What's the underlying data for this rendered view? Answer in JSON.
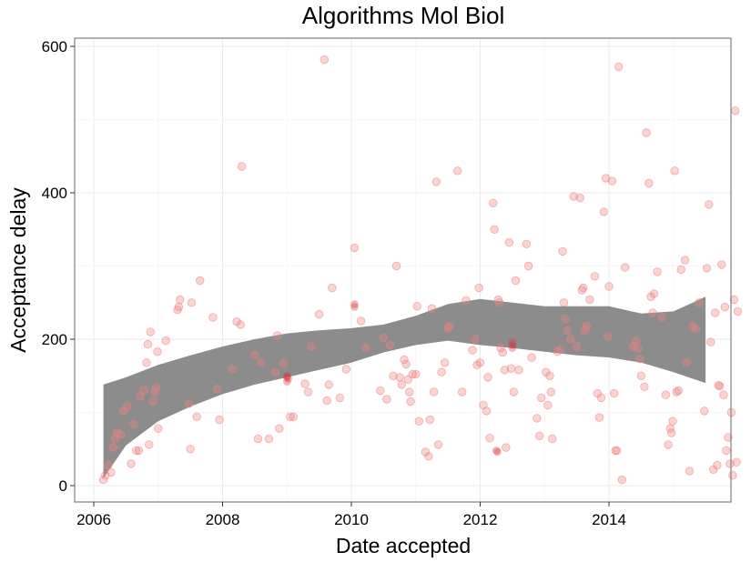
{
  "chart_data": {
    "type": "scatter",
    "title": "Algorithms Mol Biol",
    "xlabel": "Date accepted",
    "ylabel": "Acceptance delay",
    "xlim": [
      2005.7,
      2015.9
    ],
    "ylim": [
      -20,
      612
    ],
    "x_ticks": [
      2006,
      2008,
      2010,
      2012,
      2014
    ],
    "y_ticks": [
      0,
      200,
      400,
      600
    ],
    "grid": true,
    "point_color": "#f08080",
    "point_highlight_color": "#e03030",
    "band_color": "#8c8c8c",
    "points": [
      [
        2006.15,
        8
      ],
      [
        2006.18,
        14
      ],
      [
        2006.22,
        28
      ],
      [
        2006.27,
        18
      ],
      [
        2006.3,
        52
      ],
      [
        2006.33,
        64
      ],
      [
        2006.36,
        72
      ],
      [
        2006.42,
        70
      ],
      [
        2006.46,
        102
      ],
      [
        2006.52,
        108
      ],
      [
        2006.58,
        30
      ],
      [
        2006.62,
        84
      ],
      [
        2006.66,
        48
      ],
      [
        2006.7,
        48
      ],
      [
        2006.72,
        122
      ],
      [
        2006.78,
        130
      ],
      [
        2006.82,
        168
      ],
      [
        2006.84,
        193
      ],
      [
        2006.86,
        56
      ],
      [
        2006.88,
        210
      ],
      [
        2006.92,
        115
      ],
      [
        2006.95,
        128
      ],
      [
        2006.97,
        134
      ],
      [
        2006.99,
        183
      ],
      [
        2007.0,
        78
      ],
      [
        2007.12,
        198
      ],
      [
        2007.3,
        240
      ],
      [
        2007.32,
        244
      ],
      [
        2007.34,
        254
      ],
      [
        2007.48,
        112
      ],
      [
        2007.5,
        50
      ],
      [
        2007.52,
        250
      ],
      [
        2007.6,
        94
      ],
      [
        2007.65,
        280
      ],
      [
        2007.85,
        230
      ],
      [
        2007.92,
        132
      ],
      [
        2007.95,
        90
      ],
      [
        2008.15,
        159
      ],
      [
        2008.22,
        224
      ],
      [
        2008.28,
        220
      ],
      [
        2008.3,
        436
      ],
      [
        2008.5,
        178
      ],
      [
        2008.55,
        64
      ],
      [
        2008.6,
        168
      ],
      [
        2008.72,
        64
      ],
      [
        2008.82,
        155
      ],
      [
        2008.85,
        205
      ],
      [
        2008.88,
        78
      ],
      [
        2008.95,
        167
      ],
      [
        2009.05,
        94
      ],
      [
        2009.1,
        94
      ],
      [
        2009.28,
        139
      ],
      [
        2009.33,
        128
      ],
      [
        2009.38,
        190
      ],
      [
        2009.5,
        234
      ],
      [
        2009.58,
        582
      ],
      [
        2009.62,
        116
      ],
      [
        2009.65,
        138
      ],
      [
        2009.7,
        270
      ],
      [
        2009.82,
        120
      ],
      [
        2009.92,
        159
      ],
      [
        2010.05,
        325
      ],
      [
        2010.15,
        225
      ],
      [
        2010.22,
        188
      ],
      [
        2010.45,
        130
      ],
      [
        2010.5,
        202
      ],
      [
        2010.55,
        118
      ],
      [
        2010.6,
        192
      ],
      [
        2010.65,
        150
      ],
      [
        2010.7,
        300
      ],
      [
        2010.75,
        148
      ],
      [
        2010.78,
        138
      ],
      [
        2010.82,
        172
      ],
      [
        2010.85,
        166
      ],
      [
        2010.88,
        145
      ],
      [
        2010.9,
        128
      ],
      [
        2010.92,
        115
      ],
      [
        2010.95,
        152
      ],
      [
        2011.0,
        152
      ],
      [
        2011.02,
        245
      ],
      [
        2011.05,
        88
      ],
      [
        2011.15,
        46
      ],
      [
        2011.2,
        40
      ],
      [
        2011.22,
        90
      ],
      [
        2011.25,
        242
      ],
      [
        2011.28,
        128
      ],
      [
        2011.32,
        415
      ],
      [
        2011.35,
        56
      ],
      [
        2011.4,
        155
      ],
      [
        2011.45,
        168
      ],
      [
        2011.5,
        215
      ],
      [
        2011.52,
        218
      ],
      [
        2011.65,
        430
      ],
      [
        2011.72,
        128
      ],
      [
        2011.78,
        253
      ],
      [
        2011.88,
        185
      ],
      [
        2011.92,
        200
      ],
      [
        2011.95,
        165
      ],
      [
        2011.98,
        270
      ],
      [
        2012.0,
        168
      ],
      [
        2012.05,
        110
      ],
      [
        2012.1,
        102
      ],
      [
        2012.12,
        148
      ],
      [
        2012.15,
        65
      ],
      [
        2012.2,
        386
      ],
      [
        2012.22,
        350
      ],
      [
        2012.28,
        254
      ],
      [
        2012.3,
        250
      ],
      [
        2012.32,
        188
      ],
      [
        2012.35,
        182
      ],
      [
        2012.38,
        158
      ],
      [
        2012.4,
        52
      ],
      [
        2012.45,
        332
      ],
      [
        2012.48,
        160
      ],
      [
        2012.52,
        128
      ],
      [
        2012.55,
        280
      ],
      [
        2012.6,
        158
      ],
      [
        2012.72,
        330
      ],
      [
        2012.75,
        300
      ],
      [
        2012.8,
        175
      ],
      [
        2012.88,
        92
      ],
      [
        2012.92,
        68
      ],
      [
        2012.95,
        120
      ],
      [
        2013.02,
        155
      ],
      [
        2013.05,
        110
      ],
      [
        2013.08,
        150
      ],
      [
        2013.1,
        128
      ],
      [
        2013.12,
        64
      ],
      [
        2013.2,
        183
      ],
      [
        2013.25,
        186
      ],
      [
        2013.28,
        320
      ],
      [
        2013.3,
        250
      ],
      [
        2013.32,
        228
      ],
      [
        2013.35,
        212
      ],
      [
        2013.4,
        200
      ],
      [
        2013.45,
        395
      ],
      [
        2013.5,
        190
      ],
      [
        2013.55,
        393
      ],
      [
        2013.58,
        267
      ],
      [
        2013.6,
        270
      ],
      [
        2013.62,
        212
      ],
      [
        2013.65,
        218
      ],
      [
        2013.7,
        254
      ],
      [
        2013.78,
        286
      ],
      [
        2013.82,
        126
      ],
      [
        2013.85,
        93
      ],
      [
        2013.88,
        120
      ],
      [
        2013.92,
        374
      ],
      [
        2013.95,
        420
      ],
      [
        2013.98,
        204
      ],
      [
        2014.0,
        272
      ],
      [
        2014.05,
        416
      ],
      [
        2014.08,
        126
      ],
      [
        2014.1,
        48
      ],
      [
        2014.12,
        48
      ],
      [
        2014.15,
        572
      ],
      [
        2014.2,
        8
      ],
      [
        2014.25,
        298
      ],
      [
        2014.38,
        190
      ],
      [
        2014.42,
        198
      ],
      [
        2014.45,
        188
      ],
      [
        2014.48,
        173
      ],
      [
        2014.5,
        150
      ],
      [
        2014.55,
        135
      ],
      [
        2014.58,
        482
      ],
      [
        2014.62,
        413
      ],
      [
        2014.65,
        258
      ],
      [
        2014.68,
        236
      ],
      [
        2014.7,
        262
      ],
      [
        2014.75,
        292
      ],
      [
        2014.82,
        230
      ],
      [
        2014.88,
        124
      ],
      [
        2014.92,
        56
      ],
      [
        2014.95,
        78
      ],
      [
        2014.97,
        72
      ],
      [
        2014.99,
        88
      ],
      [
        2015.02,
        430
      ],
      [
        2015.05,
        128
      ],
      [
        2015.08,
        130
      ],
      [
        2015.12,
        295
      ],
      [
        2015.18,
        308
      ],
      [
        2015.2,
        168
      ],
      [
        2015.25,
        20
      ],
      [
        2015.3,
        218
      ],
      [
        2015.35,
        214
      ],
      [
        2015.4,
        250
      ],
      [
        2015.48,
        102
      ],
      [
        2015.52,
        297
      ],
      [
        2015.55,
        384
      ],
      [
        2015.58,
        196
      ],
      [
        2015.62,
        22
      ],
      [
        2015.65,
        236
      ],
      [
        2015.68,
        28
      ],
      [
        2015.7,
        137
      ],
      [
        2015.72,
        136
      ],
      [
        2015.75,
        302
      ],
      [
        2015.78,
        124
      ],
      [
        2015.8,
        244
      ],
      [
        2015.82,
        48
      ],
      [
        2015.85,
        66
      ],
      [
        2015.88,
        30
      ],
      [
        2015.9,
        100
      ],
      [
        2015.92,
        14
      ],
      [
        2015.94,
        254
      ],
      [
        2015.96,
        512
      ],
      [
        2015.98,
        32
      ],
      [
        2016.0,
        238
      ]
    ],
    "highlight_points": [
      [
        2009.0,
        148
      ],
      [
        2009.0,
        150
      ],
      [
        2009.02,
        146
      ],
      [
        2009.0,
        142
      ],
      [
        2012.25,
        48
      ],
      [
        2012.27,
        46
      ],
      [
        2012.5,
        188
      ],
      [
        2012.5,
        192
      ],
      [
        2012.5,
        196
      ],
      [
        2010.05,
        248
      ],
      [
        2010.05,
        244
      ]
    ],
    "band": {
      "x": [
        2006.15,
        2006.5,
        2007.0,
        2007.5,
        2008.0,
        2008.5,
        2009.0,
        2009.5,
        2010.0,
        2010.5,
        2011.0,
        2011.5,
        2012.0,
        2012.5,
        2013.0,
        2013.5,
        2014.0,
        2014.5,
        2015.0,
        2015.5
      ],
      "lower": [
        10,
        55,
        88,
        108,
        125,
        138,
        148,
        158,
        168,
        182,
        192,
        198,
        192,
        188,
        183,
        178,
        175,
        168,
        155,
        140
      ],
      "upper": [
        138,
        148,
        165,
        178,
        190,
        200,
        208,
        212,
        215,
        220,
        232,
        248,
        255,
        250,
        245,
        245,
        245,
        235,
        238,
        258
      ]
    }
  }
}
